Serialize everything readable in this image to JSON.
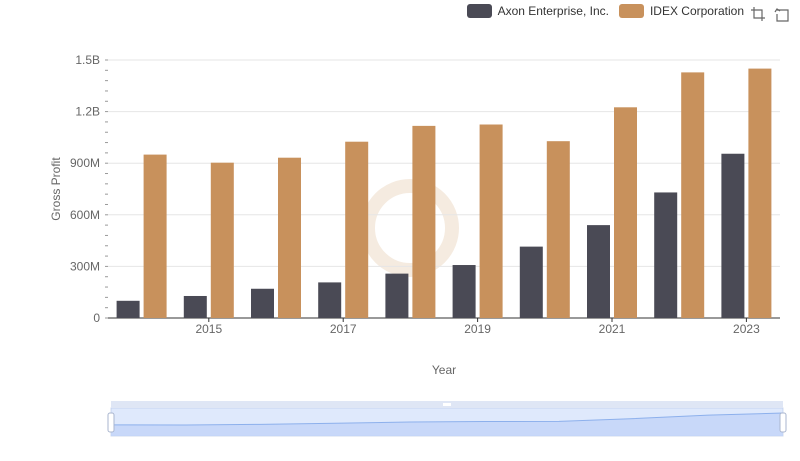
{
  "legend": {
    "items": [
      {
        "label": "Axon Enterprise, Inc.",
        "color": "#4a4a55"
      },
      {
        "label": "IDEX Corporation",
        "color": "#c8915c"
      }
    ]
  },
  "toolbox": {
    "icons": [
      "data-zoom-icon",
      "zoom-reset-icon"
    ]
  },
  "chart_data": {
    "type": "bar",
    "xlabel": "Year",
    "ylabel": "Gross Profit",
    "ylim": [
      0,
      1500000000
    ],
    "yticks": [
      {
        "value": 0,
        "label": "0"
      },
      {
        "value": 300000000,
        "label": "300M"
      },
      {
        "value": 600000000,
        "label": "600M"
      },
      {
        "value": 900000000,
        "label": "900M"
      },
      {
        "value": 1200000000,
        "label": "1.2B"
      },
      {
        "value": 1500000000,
        "label": "1.5B"
      }
    ],
    "categories": [
      "2014",
      "2015",
      "2016",
      "2017",
      "2018",
      "2019",
      "2020",
      "2021",
      "2022",
      "2023"
    ],
    "xtick_labels": [
      "2015",
      "2017",
      "2019",
      "2021",
      "2023"
    ],
    "series": [
      {
        "name": "Axon Enterprise, Inc.",
        "color": "#4a4a55",
        "values": [
          100000000,
          128000000,
          170000000,
          207000000,
          258000000,
          308000000,
          415000000,
          540000000,
          730000000,
          955000000
        ]
      },
      {
        "name": "IDEX Corporation",
        "color": "#c8915c",
        "values": [
          950000000,
          903000000,
          932000000,
          1025000000,
          1117000000,
          1125000000,
          1028000000,
          1225000000,
          1428000000,
          1450000000
        ]
      }
    ],
    "grid": true,
    "legend_position": "top-right",
    "datazoom": {
      "start": 0,
      "end": 100
    }
  }
}
